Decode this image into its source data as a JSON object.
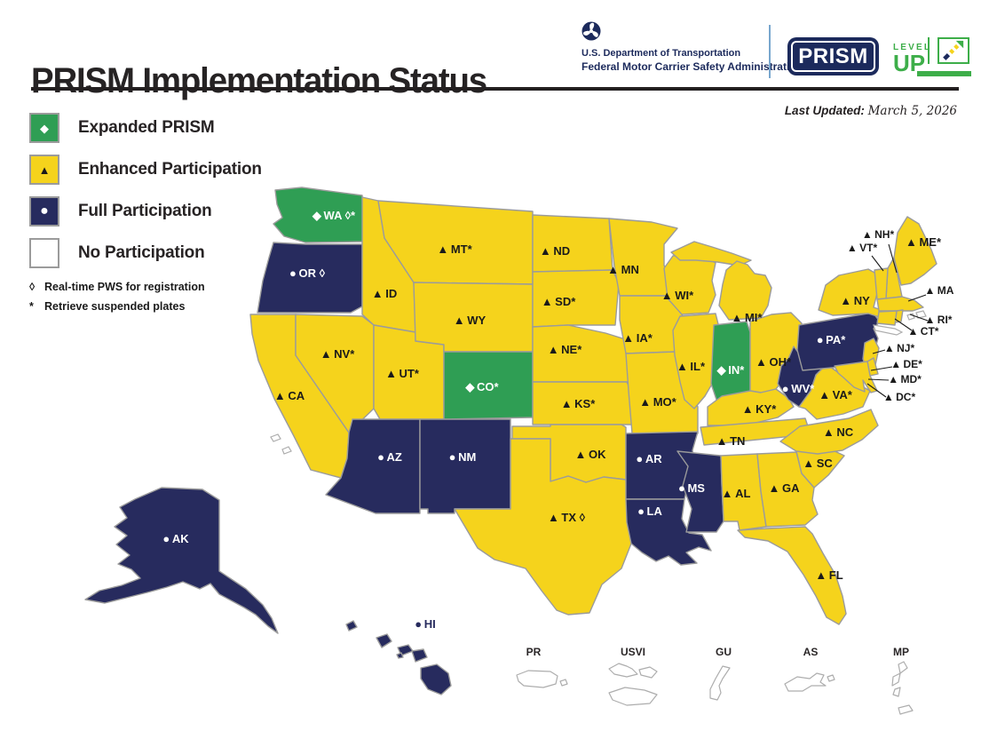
{
  "header": {
    "title": "PRISM Implementation Status",
    "agency_line1": "U.S. Department of Transportation",
    "agency_line2": "Federal Motor Carrier Safety Administration",
    "prism_badge": "PRISM",
    "levelup_top": "LEVEL",
    "levelup_bottom": "UP"
  },
  "last_updated": {
    "label": "Last Updated:",
    "date": "March 5, 2026"
  },
  "legend": {
    "items": [
      {
        "status": "expanded",
        "label": "Expanded PRISM",
        "color": "#2F9E54",
        "marker_glyph": "◆",
        "marker_color": "#FFFFFF"
      },
      {
        "status": "enhanced",
        "label": "Enhanced Participation",
        "color": "#F5D31C",
        "marker_glyph": "▲",
        "marker_color": "#1A1A1A"
      },
      {
        "status": "full",
        "label": "Full Participation",
        "color": "#272B5E",
        "marker_glyph": "●",
        "marker_color": "#FFFFFF"
      },
      {
        "status": "none",
        "label": "No Participation",
        "color": "#FFFFFF",
        "marker_glyph": "",
        "marker_color": ""
      }
    ],
    "footnotes": [
      {
        "symbol": "◊",
        "text": "Real-time PWS for registration"
      },
      {
        "symbol": "*",
        "text": "Retrieve suspended plates"
      }
    ]
  },
  "map": {
    "states": [
      {
        "abbr": "WA",
        "label": "WA ◊*",
        "status": "expanded"
      },
      {
        "abbr": "OR",
        "label": "OR ◊",
        "status": "full"
      },
      {
        "abbr": "CA",
        "label": "CA",
        "status": "enhanced"
      },
      {
        "abbr": "ID",
        "label": "ID",
        "status": "enhanced"
      },
      {
        "abbr": "NV",
        "label": "NV*",
        "status": "enhanced"
      },
      {
        "abbr": "UT",
        "label": "UT*",
        "status": "enhanced"
      },
      {
        "abbr": "AZ",
        "label": "AZ",
        "status": "full"
      },
      {
        "abbr": "MT",
        "label": "MT*",
        "status": "enhanced"
      },
      {
        "abbr": "WY",
        "label": "WY",
        "status": "enhanced"
      },
      {
        "abbr": "CO",
        "label": "CO*",
        "status": "expanded"
      },
      {
        "abbr": "NM",
        "label": "NM",
        "status": "full"
      },
      {
        "abbr": "ND",
        "label": "ND",
        "status": "enhanced"
      },
      {
        "abbr": "SD",
        "label": "SD*",
        "status": "enhanced"
      },
      {
        "abbr": "NE",
        "label": "NE*",
        "status": "enhanced"
      },
      {
        "abbr": "KS",
        "label": "KS*",
        "status": "enhanced"
      },
      {
        "abbr": "OK",
        "label": "OK",
        "status": "enhanced"
      },
      {
        "abbr": "TX",
        "label": "TX ◊",
        "status": "enhanced"
      },
      {
        "abbr": "MN",
        "label": "MN",
        "status": "enhanced"
      },
      {
        "abbr": "IA",
        "label": "IA*",
        "status": "enhanced"
      },
      {
        "abbr": "MO",
        "label": "MO*",
        "status": "enhanced"
      },
      {
        "abbr": "WI",
        "label": "WI*",
        "status": "enhanced"
      },
      {
        "abbr": "IL",
        "label": "IL*",
        "status": "enhanced"
      },
      {
        "abbr": "MI",
        "label": "MI*",
        "status": "enhanced"
      },
      {
        "abbr": "IN",
        "label": "IN*",
        "status": "expanded"
      },
      {
        "abbr": "OH",
        "label": "OH*",
        "status": "enhanced"
      },
      {
        "abbr": "KY",
        "label": "KY*",
        "status": "enhanced"
      },
      {
        "abbr": "TN",
        "label": "TN",
        "status": "enhanced"
      },
      {
        "abbr": "AR",
        "label": "AR",
        "status": "full"
      },
      {
        "abbr": "LA",
        "label": "LA",
        "status": "full"
      },
      {
        "abbr": "MS",
        "label": "MS",
        "status": "full"
      },
      {
        "abbr": "AL",
        "label": "AL",
        "status": "enhanced"
      },
      {
        "abbr": "GA",
        "label": "GA",
        "status": "enhanced"
      },
      {
        "abbr": "SC",
        "label": "SC",
        "status": "enhanced"
      },
      {
        "abbr": "NC",
        "label": "NC",
        "status": "enhanced"
      },
      {
        "abbr": "FL",
        "label": "FL",
        "status": "enhanced"
      },
      {
        "abbr": "VA",
        "label": "VA*",
        "status": "enhanced"
      },
      {
        "abbr": "WV",
        "label": "WV*",
        "status": "full"
      },
      {
        "abbr": "PA",
        "label": "PA*",
        "status": "full"
      },
      {
        "abbr": "NY",
        "label": "NY",
        "status": "enhanced"
      },
      {
        "abbr": "ME",
        "label": "ME*",
        "status": "enhanced"
      },
      {
        "abbr": "NH",
        "label": "NH*",
        "status": "enhanced"
      },
      {
        "abbr": "VT",
        "label": "VT*",
        "status": "enhanced"
      },
      {
        "abbr": "MA",
        "label": "MA",
        "status": "enhanced"
      },
      {
        "abbr": "RI",
        "label": "RI*",
        "status": "enhanced"
      },
      {
        "abbr": "CT",
        "label": "CT*",
        "status": "enhanced"
      },
      {
        "abbr": "NJ",
        "label": "NJ*",
        "status": "enhanced"
      },
      {
        "abbr": "DE",
        "label": "DE*",
        "status": "enhanced"
      },
      {
        "abbr": "MD",
        "label": "MD*",
        "status": "enhanced"
      },
      {
        "abbr": "DC",
        "label": "DC*",
        "status": "enhanced"
      },
      {
        "abbr": "AK",
        "label": "AK",
        "status": "full"
      },
      {
        "abbr": "HI",
        "label": "HI",
        "status": "full"
      }
    ],
    "territories": [
      {
        "abbr": "PR",
        "label": "PR",
        "status": "none"
      },
      {
        "abbr": "USVI",
        "label": "USVI",
        "status": "none"
      },
      {
        "abbr": "GU",
        "label": "GU",
        "status": "none"
      },
      {
        "abbr": "AS",
        "label": "AS",
        "status": "none"
      },
      {
        "abbr": "MP",
        "label": "MP",
        "status": "none"
      }
    ]
  },
  "colors": {
    "border": "#9B9B9B",
    "territory_border": "#ADADAD",
    "label_dark": "#1A1A1A",
    "label_light": "#FFFFFF",
    "navy": "#272B5E",
    "header_navy": "#1C2A5C",
    "accent_green": "#3DAE49",
    "divider_blue": "#78A7CE",
    "rule_black": "#231F20",
    "accent_yellow": "#F5D31C"
  }
}
